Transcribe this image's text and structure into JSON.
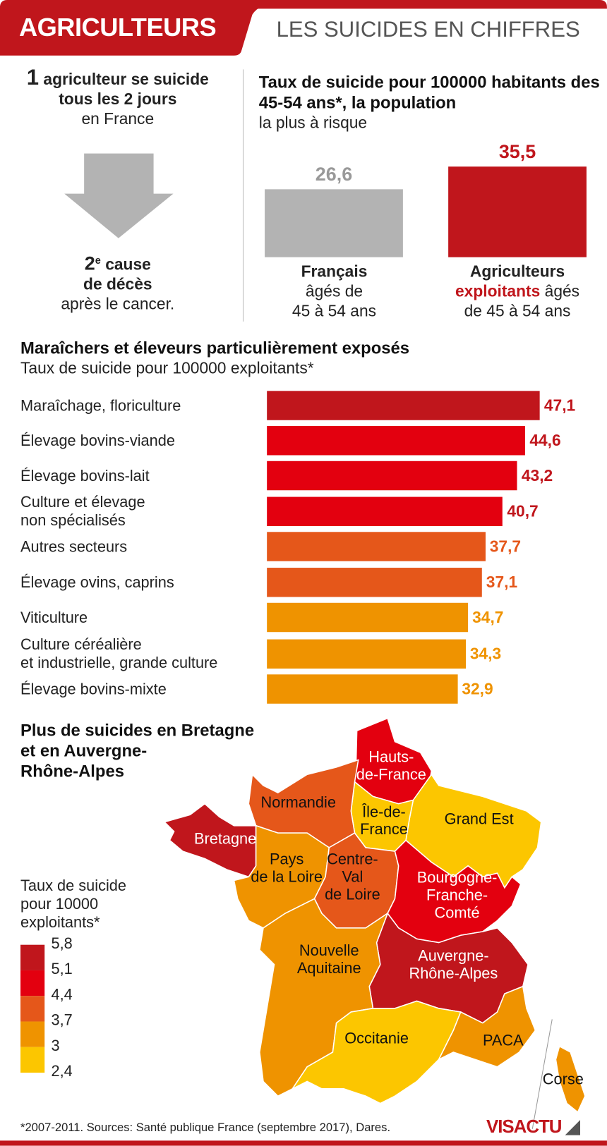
{
  "header": {
    "title": "AGRICULTEURS",
    "subtitle": "LES SUICIDES EN CHIFFRES"
  },
  "fact": {
    "number": "1",
    "line1": "agriculteur se suicide",
    "line2": "tous les 2 jours",
    "line3": "en France",
    "cause_num": "2",
    "cause_sup": "e",
    "cause_word": "cause",
    "cause_line2": "de décès",
    "cause_line3": "après le cancer."
  },
  "colors": {
    "dark_red": "#c0161c",
    "red": "#e3000f",
    "orange_red": "#e5571a",
    "orange": "#ef9300",
    "yellow": "#fcc600",
    "gray": "#b3b3b3"
  },
  "chart_data": [
    {
      "type": "bar",
      "title": "Taux de suicide pour 100000 habitants des 45-54 ans*, la population",
      "subtitle": "la plus à risque",
      "categories": [
        {
          "bold": "Français",
          "rest1": "âgés de",
          "rest2": "45 à 54 ans"
        },
        {
          "bold": "Agriculteurs exploitants",
          "bold1": "Agriculteurs",
          "bold2": "exploitants",
          "rest1": "âgés",
          "rest2": "de 45 à 54 ans"
        }
      ],
      "values": [
        26.6,
        35.5
      ],
      "labels": [
        "26,6",
        "35,5"
      ],
      "ylim": [
        0,
        40
      ]
    },
    {
      "type": "bar",
      "title": "Maraîchers et éleveurs particulièrement exposés",
      "subtitle": "Taux de suicide pour 100000 exploitants*",
      "categories": [
        [
          "Maraîchage, floriculture"
        ],
        [
          "Élevage bovins-viande"
        ],
        [
          "Élevage bovins-lait"
        ],
        [
          "Culture et élevage",
          "non spécialisés"
        ],
        [
          "Autres secteurs"
        ],
        [
          "Élevage ovins, caprins"
        ],
        [
          "Viticulture"
        ],
        [
          "Culture céréalière",
          "et industrielle, grande culture"
        ],
        [
          "Élevage bovins-mixte"
        ]
      ],
      "values": [
        47.1,
        44.6,
        43.2,
        40.7,
        37.7,
        37.1,
        34.7,
        34.3,
        32.9
      ],
      "labels": [
        "47,1",
        "44,6",
        "43,2",
        "40,7",
        "37,7",
        "37,1",
        "34,7",
        "34,3",
        "32,9"
      ],
      "xlim": [
        0,
        47.1
      ]
    },
    {
      "type": "heatmap",
      "title_lines": [
        "Plus de suicides en Bretagne",
        "et en Auvergne-",
        "Rhône-Alpes"
      ],
      "legend_title": [
        "Taux de suicide",
        "pour 10000",
        "exploitants*"
      ],
      "legend_ticks": [
        "5,8",
        "5,1",
        "4,4",
        "3,7",
        "3",
        "2,4"
      ],
      "regions": [
        {
          "name": "Hauts-de-France",
          "label": [
            "Hauts-",
            "de-France"
          ],
          "class": "red"
        },
        {
          "name": "Grand Est",
          "label": [
            "Grand Est"
          ],
          "class": "yellow"
        },
        {
          "name": "Île-de-France",
          "label": [
            "Île-de-",
            "France"
          ],
          "class": "yellow"
        },
        {
          "name": "Normandie",
          "label": [
            "Normandie"
          ],
          "class": "orange_red"
        },
        {
          "name": "Bretagne",
          "label": [
            "Bretagne"
          ],
          "class": "dark_red"
        },
        {
          "name": "Pays de la Loire",
          "label": [
            "Pays",
            "de la Loire"
          ],
          "class": "orange"
        },
        {
          "name": "Centre-Val de Loire",
          "label": [
            "Centre-",
            "Val",
            "de Loire"
          ],
          "class": "orange_red"
        },
        {
          "name": "Bourgogne-Franche-Comté",
          "label": [
            "Bourgogne-",
            "Franche-",
            "Comté"
          ],
          "class": "red"
        },
        {
          "name": "Auvergne-Rhône-Alpes",
          "label": [
            "Auvergne-",
            "Rhône-Alpes"
          ],
          "class": "dark_red"
        },
        {
          "name": "Nouvelle Aquitaine",
          "label": [
            "Nouvelle",
            "Aquitaine"
          ],
          "class": "orange"
        },
        {
          "name": "Occitanie",
          "label": [
            "Occitanie"
          ],
          "class": "yellow"
        },
        {
          "name": "PACA",
          "label": [
            "PACA"
          ],
          "class": "orange"
        },
        {
          "name": "Corse",
          "label": [
            "Corse"
          ],
          "class": "orange"
        }
      ]
    }
  ],
  "footer": {
    "note": "*2007-2011.  Sources: Santé publique France (septembre 2017), Dares.",
    "logo": "VISACTU"
  }
}
